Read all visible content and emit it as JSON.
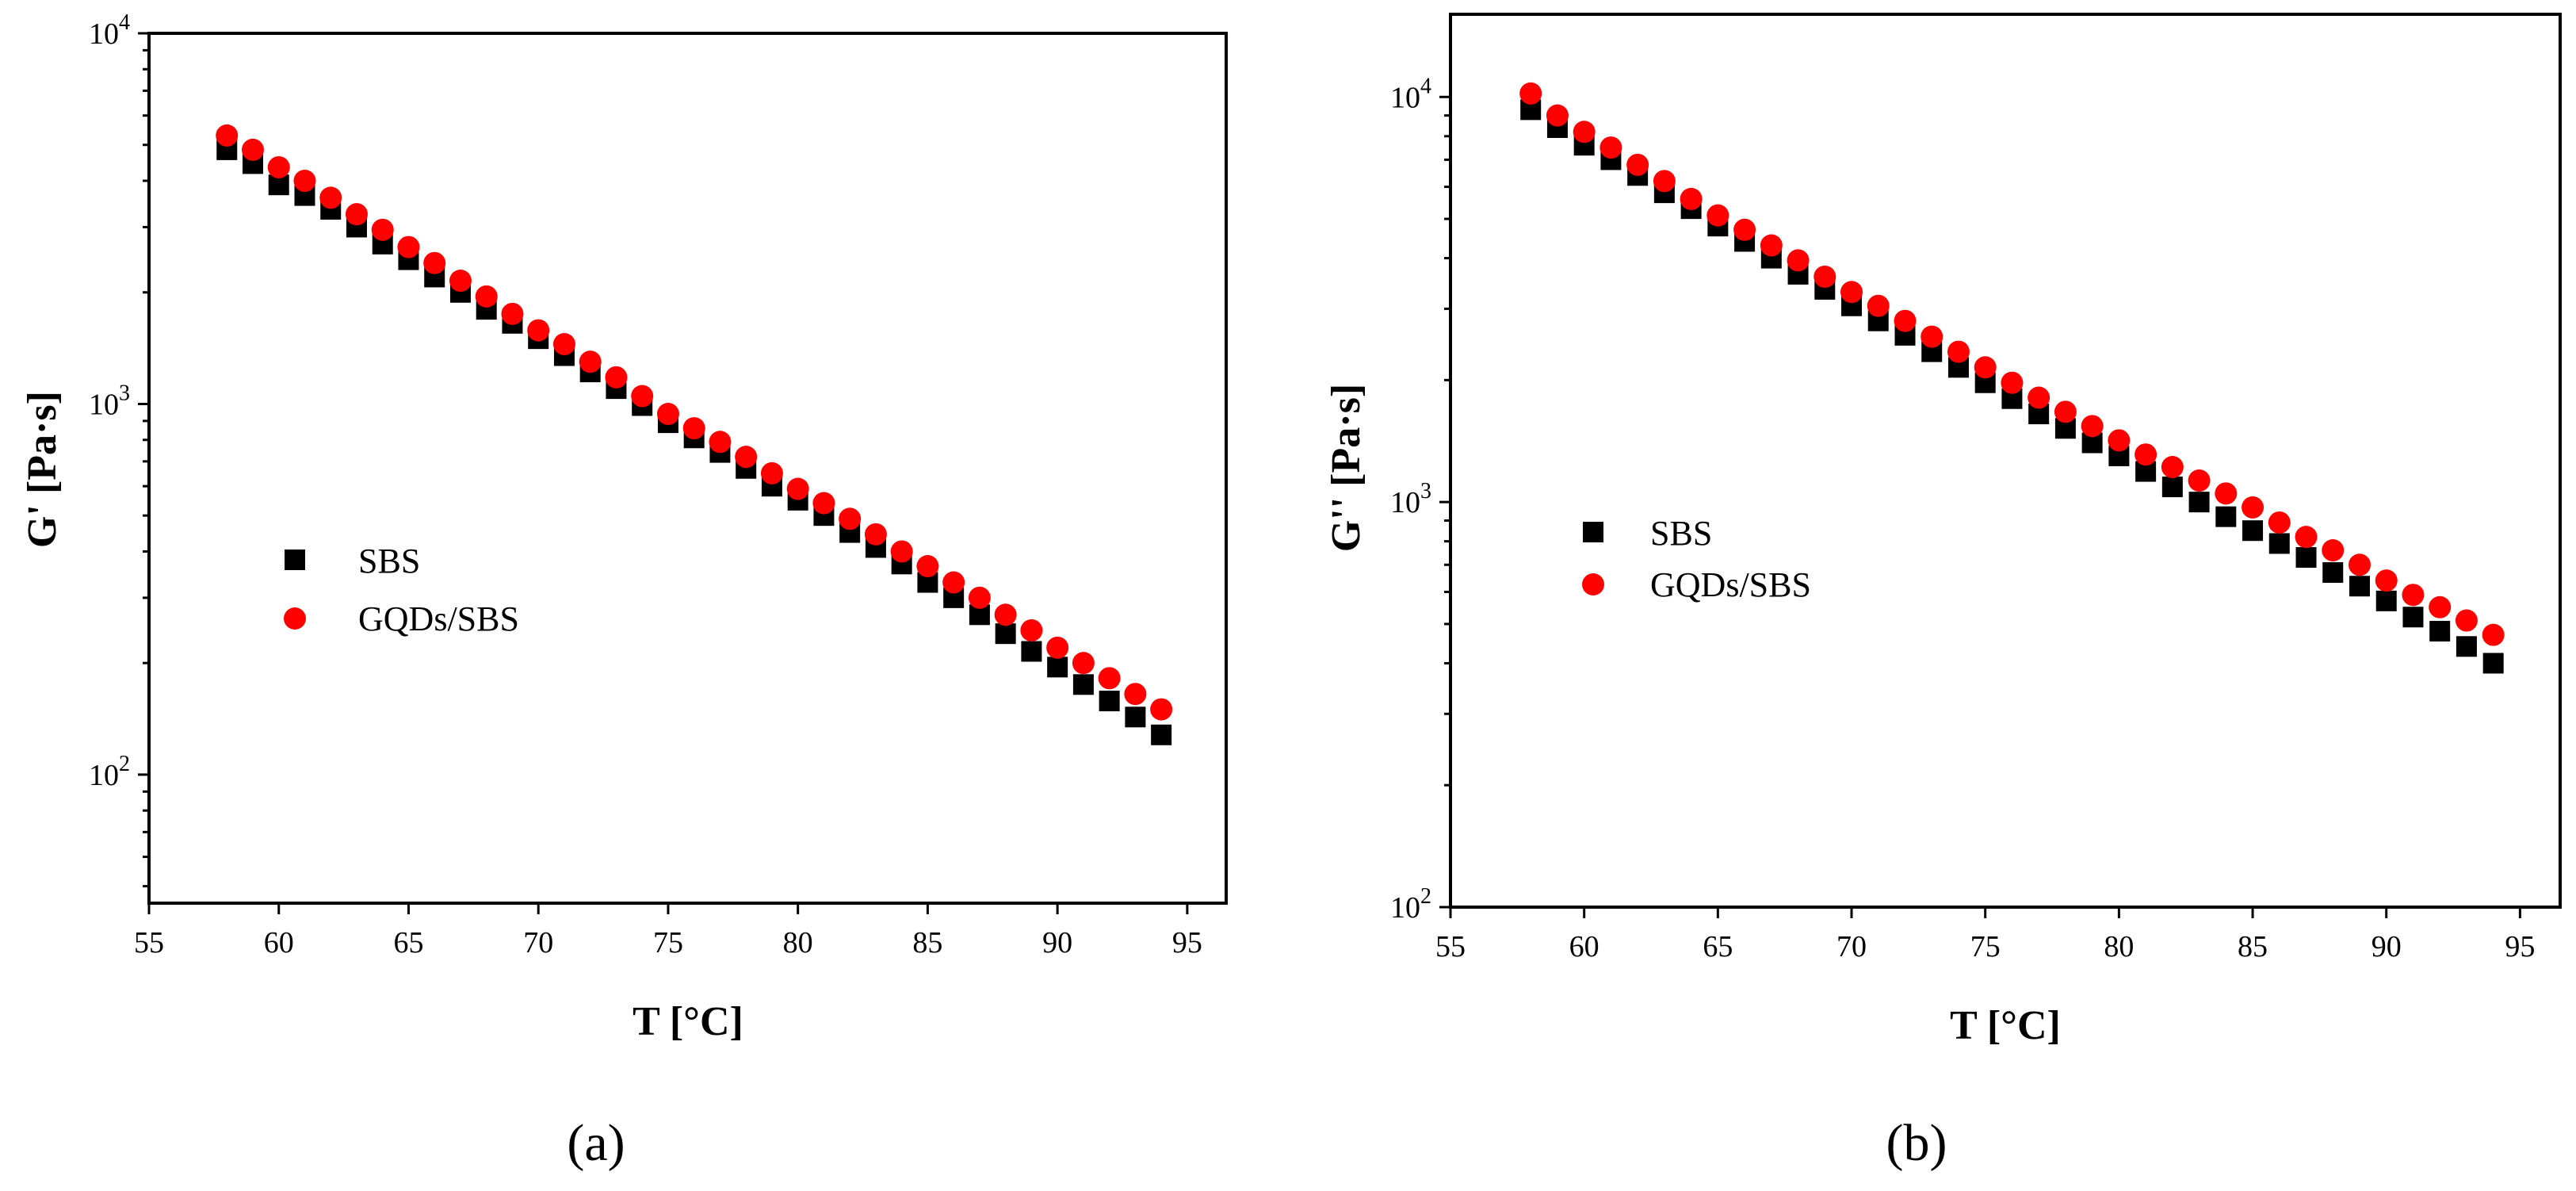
{
  "chart_data": [
    {
      "type": "scatter",
      "panel_label": "(a)",
      "xlabel": "T [°C]",
      "ylabel": "G' [Pa·s]",
      "xlim": [
        55,
        96.5
      ],
      "ylim": [
        45,
        10000
      ],
      "yscale": "log",
      "xticks": [
        55,
        60,
        65,
        70,
        75,
        80,
        85,
        90,
        95
      ],
      "yticks": [
        {
          "value": 100,
          "base": "10",
          "exp": "2"
        },
        {
          "value": 1000,
          "base": "10",
          "exp": "3"
        },
        {
          "value": 10000,
          "base": "10",
          "exp": "4"
        }
      ],
      "legend_position": "center-left",
      "x": [
        58,
        59,
        60,
        61,
        62,
        63,
        64,
        65,
        66,
        67,
        68,
        69,
        70,
        71,
        72,
        73,
        74,
        75,
        76,
        77,
        78,
        79,
        80,
        81,
        82,
        83,
        84,
        85,
        86,
        87,
        88,
        89,
        90,
        91,
        92,
        93,
        94
      ],
      "series": [
        {
          "name": "SBS",
          "marker": "square",
          "color": "#000000",
          "values": [
            4850,
            4450,
            3900,
            3650,
            3350,
            3000,
            2700,
            2450,
            2200,
            2000,
            1800,
            1650,
            1500,
            1350,
            1220,
            1100,
            990,
            890,
            810,
            740,
            670,
            600,
            550,
            500,
            450,
            410,
            370,
            330,
            300,
            270,
            240,
            215,
            195,
            175,
            158,
            143,
            128
          ]
        },
        {
          "name": "GQDs/SBS",
          "marker": "circle",
          "color": "#ff0000",
          "values": [
            5300,
            4850,
            4350,
            4000,
            3600,
            3250,
            2950,
            2650,
            2400,
            2150,
            1950,
            1750,
            1580,
            1450,
            1300,
            1180,
            1050,
            940,
            860,
            790,
            720,
            650,
            590,
            540,
            490,
            445,
            400,
            365,
            330,
            300,
            270,
            245,
            220,
            200,
            182,
            165,
            150
          ]
        }
      ]
    },
    {
      "type": "scatter",
      "panel_label": "(b)",
      "xlabel": "T [°C]",
      "ylabel": "G'' [Pa·s]",
      "xlim": [
        55,
        96.5
      ],
      "ylim": [
        100,
        16000
      ],
      "yscale": "log",
      "xticks": [
        55,
        60,
        65,
        70,
        75,
        80,
        85,
        90,
        95
      ],
      "yticks": [
        {
          "value": 100,
          "base": "10",
          "exp": "2"
        },
        {
          "value": 1000,
          "base": "10",
          "exp": "3"
        },
        {
          "value": 10000,
          "base": "10",
          "exp": "4"
        }
      ],
      "legend_position": "center-left",
      "x": [
        58,
        59,
        60,
        61,
        62,
        63,
        64,
        65,
        66,
        67,
        68,
        69,
        70,
        71,
        72,
        73,
        74,
        75,
        76,
        77,
        78,
        79,
        80,
        81,
        82,
        83,
        84,
        85,
        86,
        87,
        88,
        89,
        90,
        91,
        92,
        93,
        94
      ],
      "series": [
        {
          "name": "SBS",
          "marker": "square",
          "color": "#000000",
          "values": [
            9300,
            8400,
            7600,
            7000,
            6400,
            5800,
            5300,
            4800,
            4400,
            4000,
            3650,
            3350,
            3050,
            2800,
            2580,
            2350,
            2150,
            1970,
            1800,
            1650,
            1520,
            1400,
            1300,
            1190,
            1090,
            1000,
            920,
            850,
            790,
            730,
            670,
            620,
            570,
            520,
            480,
            440,
            400
          ]
        },
        {
          "name": "GQDs/SBS",
          "marker": "circle",
          "color": "#ff0000",
          "values": [
            10200,
            9000,
            8200,
            7500,
            6800,
            6200,
            5600,
            5100,
            4700,
            4300,
            3950,
            3600,
            3300,
            3050,
            2800,
            2560,
            2350,
            2150,
            1970,
            1810,
            1670,
            1540,
            1420,
            1310,
            1220,
            1130,
            1050,
            970,
            890,
            820,
            760,
            700,
            640,
            590,
            550,
            510,
            470
          ]
        }
      ]
    }
  ]
}
